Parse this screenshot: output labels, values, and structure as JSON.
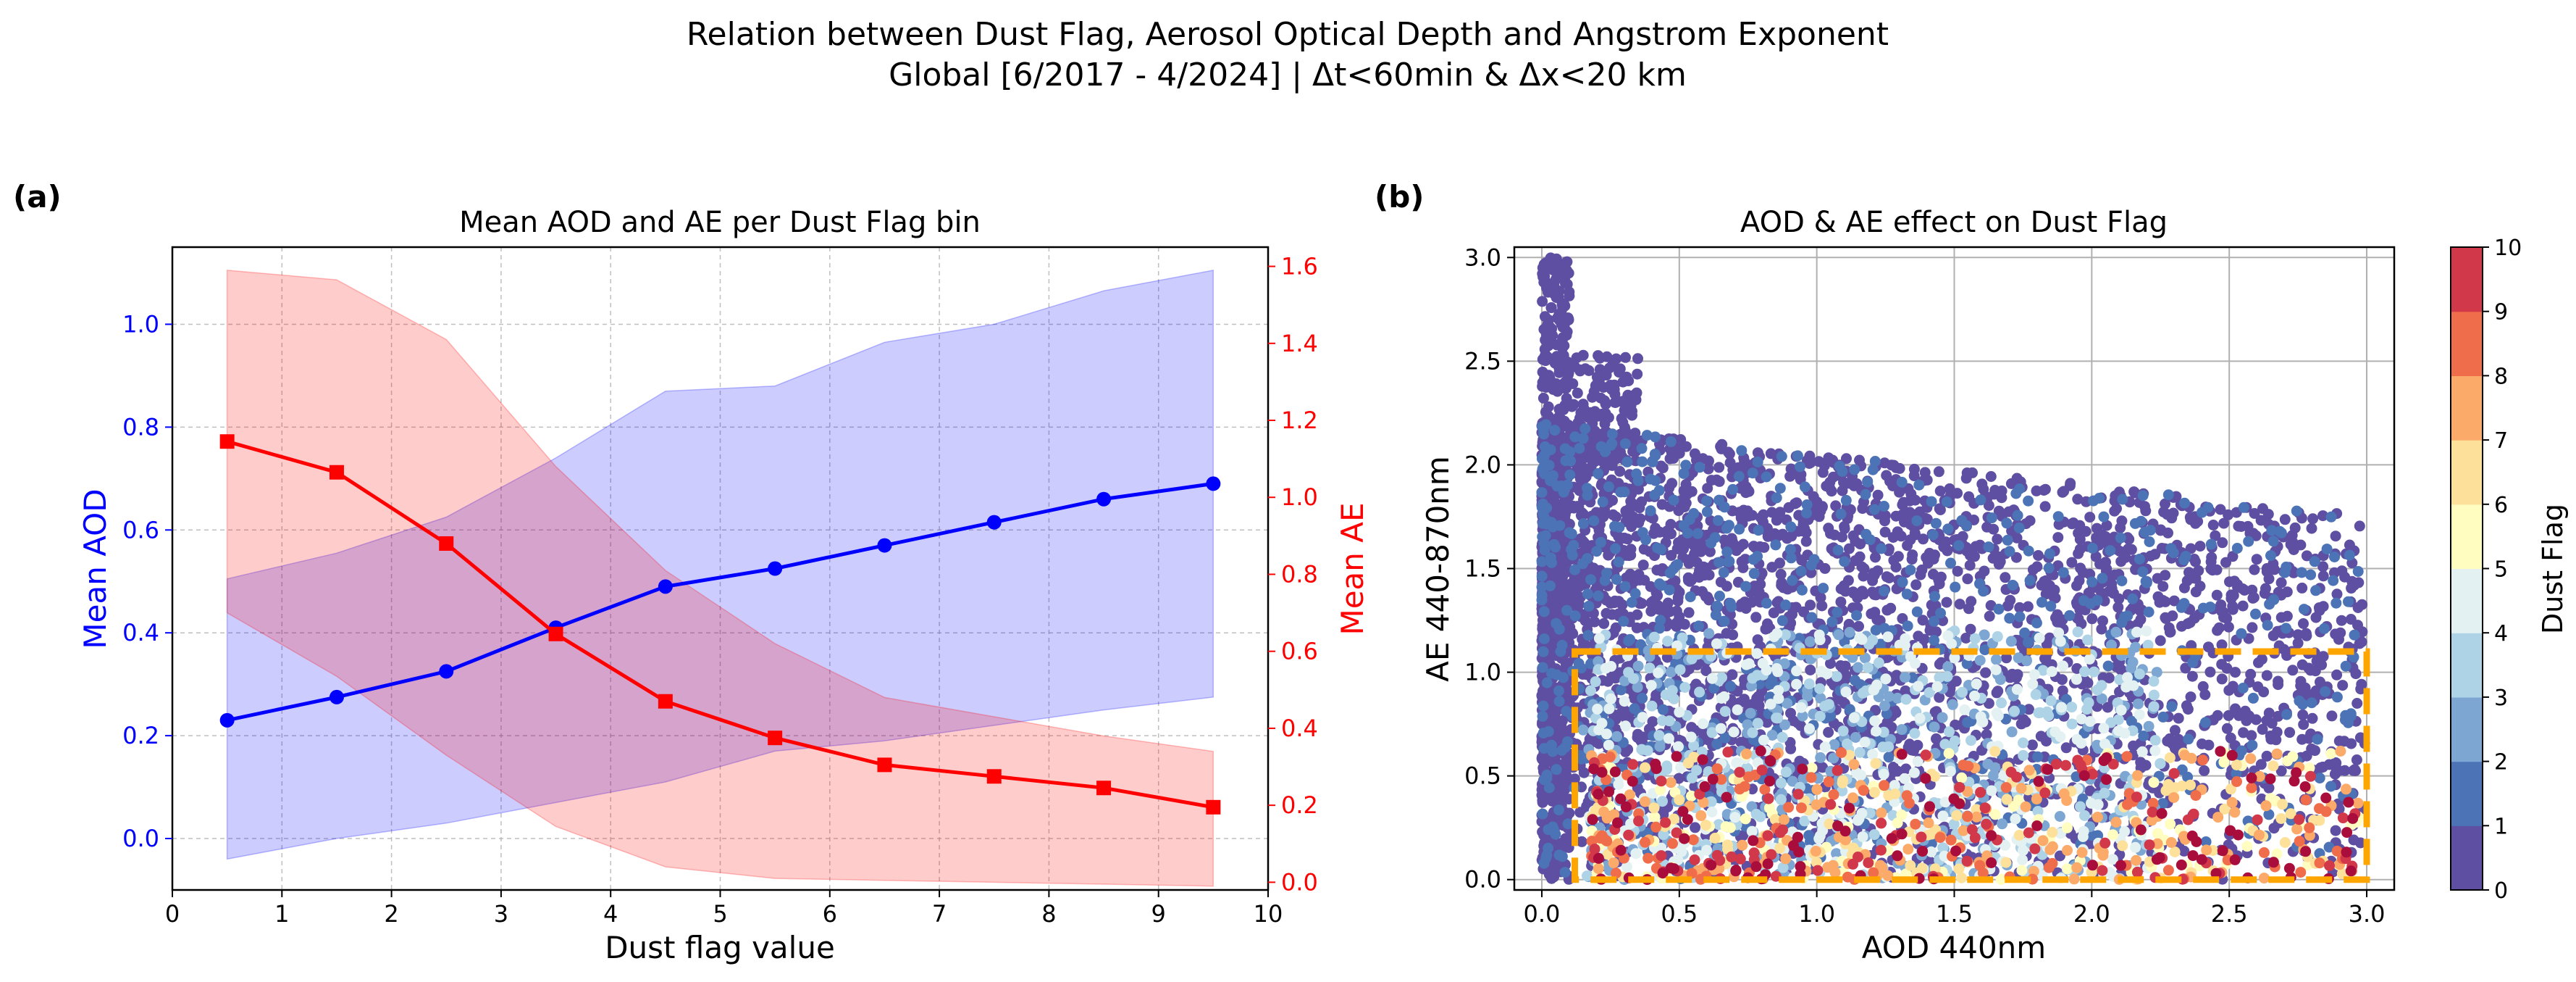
{
  "figure": {
    "title_line1": "Relation between Dust Flag, Aerosol Optical Depth and Angstrom Exponent",
    "title_line2": "Global [6/2017 - 4/2024] | Δt<60min & Δx<20 km"
  },
  "chart_data": [
    {
      "type": "line",
      "panel_label": "(a)",
      "title": "Mean AOD and AE per Dust Flag bin",
      "xlabel": "Dust flag value",
      "ylabel_left": "Mean AOD",
      "ylabel_right": "Mean AE",
      "xlim": [
        0,
        10
      ],
      "ylim_left": [
        -0.1,
        1.15
      ],
      "ylim_right": [
        -0.02,
        1.65
      ],
      "x_ticks": [
        0,
        1,
        2,
        3,
        4,
        5,
        6,
        7,
        8,
        9,
        10
      ],
      "y_ticks_left": [
        0.0,
        0.2,
        0.4,
        0.6,
        0.8,
        1.0
      ],
      "y_ticks_right": [
        0.0,
        0.2,
        0.4,
        0.6,
        0.8,
        1.0,
        1.2,
        1.4,
        1.6
      ],
      "x_tick_labels": [
        "0",
        "1",
        "2",
        "3",
        "4",
        "5",
        "6",
        "7",
        "8",
        "9",
        "10"
      ],
      "y_tick_labels_left": [
        "0.0",
        "0.2",
        "0.4",
        "0.6",
        "0.8",
        "1.0"
      ],
      "y_tick_labels_right": [
        "0.0",
        "0.2",
        "0.4",
        "0.6",
        "0.8",
        "1.0",
        "1.2",
        "1.4",
        "1.6"
      ],
      "grid": true,
      "x": [
        0.5,
        1.5,
        2.5,
        3.5,
        4.5,
        5.5,
        6.5,
        7.5,
        8.5,
        9.5
      ],
      "series": [
        {
          "name": "Mean AOD",
          "axis": "left",
          "color": "#0000ff",
          "marker": "circle",
          "values": [
            0.23,
            0.275,
            0.325,
            0.41,
            0.49,
            0.525,
            0.57,
            0.615,
            0.66,
            0.69
          ],
          "band_lower": [
            -0.04,
            0.0,
            0.03,
            0.07,
            0.11,
            0.17,
            0.19,
            0.22,
            0.25,
            0.275
          ],
          "band_upper": [
            0.505,
            0.555,
            0.625,
            0.74,
            0.87,
            0.88,
            0.965,
            1.0,
            1.065,
            1.105
          ],
          "band_color": "#0000ff"
        },
        {
          "name": "Mean AE",
          "axis": "right",
          "color": "#ff0000",
          "marker": "square",
          "values": [
            1.145,
            1.065,
            0.88,
            0.645,
            0.47,
            0.375,
            0.305,
            0.275,
            0.245,
            0.195
          ],
          "band_lower": [
            0.7,
            0.535,
            0.33,
            0.145,
            0.04,
            0.01,
            0.005,
            0.0,
            -0.005,
            -0.01
          ],
          "band_upper": [
            1.59,
            1.565,
            1.41,
            1.08,
            0.81,
            0.62,
            0.48,
            0.43,
            0.38,
            0.34
          ],
          "band_color": "#ff0000"
        }
      ]
    },
    {
      "type": "scatter",
      "panel_label": "(b)",
      "title": "AOD & AE effect on Dust Flag",
      "xlabel": "AOD 440nm",
      "ylabel": "AE 440-870nm",
      "xlim": [
        -0.1,
        3.1
      ],
      "ylim": [
        -0.05,
        3.05
      ],
      "x_ticks": [
        0.0,
        0.5,
        1.0,
        1.5,
        2.0,
        2.5,
        3.0
      ],
      "y_ticks": [
        0.0,
        0.5,
        1.0,
        1.5,
        2.0,
        2.5,
        3.0
      ],
      "x_tick_labels": [
        "0.0",
        "0.5",
        "1.0",
        "1.5",
        "2.0",
        "2.5",
        "3.0"
      ],
      "y_tick_labels": [
        "0.0",
        "0.5",
        "1.0",
        "1.5",
        "2.0",
        "2.5",
        "3.0"
      ],
      "grid": true,
      "color_variable": "Dust Flag",
      "points_note": "Thousands of points, colored by dust flag (0-10). Non-dust (0-1) points fill AE 0-2.2 over all AOD; dusty (5-10) points concentrate at AE < 0.6 and AOD 0.2-3.0.",
      "threshold_box": {
        "aod_min": 0.12,
        "aod_max": 3.0,
        "ae_min": 0.0,
        "ae_max": 1.1,
        "color": "#ffa500",
        "style": "dashed"
      },
      "colorbar": {
        "label": "Dust Flag",
        "ticks": [
          "0",
          "1",
          "2",
          "3",
          "4",
          "5",
          "6",
          "7",
          "8",
          "9",
          "10"
        ],
        "colors": [
          "#5e4fa2",
          "#4b73b6",
          "#7da7d2",
          "#aed3e6",
          "#e4f1f2",
          "#fffdc0",
          "#fde19b",
          "#fcaa69",
          "#f06d4b",
          "#d1384a",
          "#a80d3c"
        ]
      }
    }
  ]
}
